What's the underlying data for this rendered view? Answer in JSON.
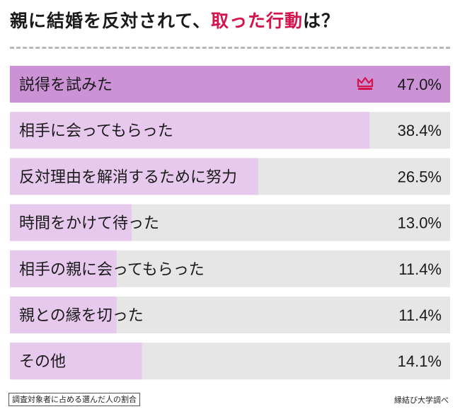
{
  "header": {
    "title_main": "親に結婚を反対されて、",
    "title_accent": "取った行動",
    "title_tail": "は？"
  },
  "colors": {
    "bar_top": "#cc92d6",
    "bar_other": "#e8c9ee",
    "bar_bg": "#e6e6e6",
    "accent": "#d4144c",
    "text": "#1a1a1a"
  },
  "chart_data": {
    "type": "bar",
    "orientation": "horizontal",
    "title": "親に結婚を反対されて、取った行動は？",
    "categories": [
      "説得を試みた",
      "相手に会ってもらった",
      "反対理由を解消するために努力",
      "時間をかけて待った",
      "相手の親に会ってもらった",
      "親との縁を切った",
      "その他"
    ],
    "values": [
      47.0,
      38.4,
      26.5,
      13.0,
      11.4,
      11.4,
      14.1
    ],
    "value_labels": [
      "47.0%",
      "38.4%",
      "26.5%",
      "13.0%",
      "11.4%",
      "11.4%",
      "14.1%"
    ],
    "unit": "%",
    "xlim": [
      0,
      47.0
    ],
    "highlight_index": 0,
    "highlight_icon": "crown-icon",
    "grid": false,
    "legend": "none"
  },
  "footer": {
    "note": "調査対象者に占める選んだ人の割合",
    "source": "縁結び大学調べ"
  }
}
